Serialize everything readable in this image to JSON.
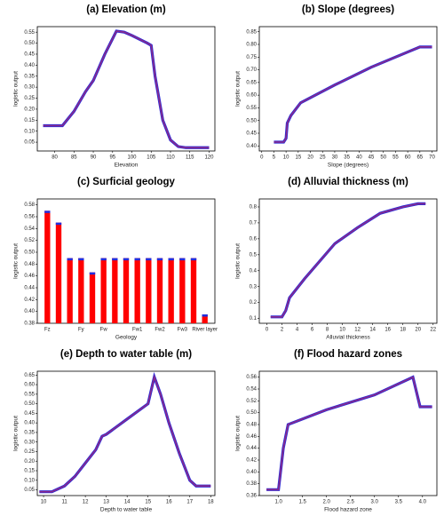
{
  "chart_data": [
    {
      "type": "line",
      "title": "(a) Elevation (m)",
      "xlabel": "Elevation",
      "ylabel": "logistic output",
      "x": [
        77,
        82,
        85,
        88,
        90,
        93,
        96,
        98,
        100,
        104,
        105,
        106,
        108,
        110,
        112,
        114,
        120
      ],
      "series": [
        {
          "color": "#8b2a8b",
          "values": [
            0.125,
            0.125,
            0.19,
            0.28,
            0.33,
            0.45,
            0.555,
            0.55,
            0.535,
            0.5,
            0.49,
            0.35,
            0.15,
            0.06,
            0.03,
            0.025,
            0.025
          ]
        }
      ],
      "xlim": [
        75.5,
        121.5
      ],
      "xticks": [
        80,
        85,
        90,
        95,
        100,
        105,
        110,
        115,
        120
      ],
      "ylim": [
        0.01,
        0.575
      ],
      "yticks": [
        0.05,
        {
          "value": 0.1,
          "label": "0.10"
        },
        0.15,
        {
          "value": 0.2,
          "label": "0.20"
        },
        0.25,
        {
          "value": 0.3,
          "label": "0.30"
        },
        0.35,
        {
          "value": 0.4,
          "label": "0.40"
        },
        0.45,
        {
          "value": 0.5,
          "label": "0.50"
        },
        0.55
      ]
    },
    {
      "type": "line",
      "title": "(b) Slope (degrees)",
      "xlabel": "Slope (degrees)",
      "ylabel": "logistic output",
      "x": [
        5,
        9,
        10,
        10.5,
        12,
        16,
        30,
        45,
        60,
        65,
        70
      ],
      "series": [
        {
          "color": "#8b2a8b",
          "values": [
            0.415,
            0.415,
            0.43,
            0.49,
            0.52,
            0.57,
            0.64,
            0.71,
            0.77,
            0.79,
            0.79
          ]
        }
      ],
      "xlim": [
        -1,
        72
      ],
      "xticks": [
        0,
        5,
        10,
        15,
        20,
        25,
        30,
        35,
        40,
        45,
        50,
        55,
        60,
        65,
        70
      ],
      "ylim": [
        0.38,
        0.87
      ],
      "yticks": [
        {
          "value": 0.4,
          "label": "0.40"
        },
        0.45,
        {
          "value": 0.5,
          "label": "0.50"
        },
        0.55,
        {
          "value": 0.6,
          "label": "0.60"
        },
        0.65,
        {
          "value": 0.7,
          "label": "0.70"
        },
        0.75,
        {
          "value": 0.8,
          "label": "0.80"
        },
        0.85
      ]
    },
    {
      "type": "bar",
      "title": "(c) Surficial geology",
      "xlabel": "Geology",
      "ylabel": "logistic output",
      "color": "#ff0000",
      "categories": [
        "Fz",
        null,
        null,
        "Fy",
        null,
        "Fw",
        null,
        null,
        "Fw1",
        null,
        "Fw2",
        null,
        "Fw3",
        null,
        "River layer"
      ],
      "values": [
        0.57,
        0.55,
        0.49,
        0.49,
        0.466,
        0.49,
        0.49,
        0.49,
        0.49,
        0.49,
        0.49,
        0.49,
        0.49,
        0.49,
        0.395
      ],
      "ylim": [
        0.38,
        0.59
      ],
      "yticks": [
        0.38,
        {
          "value": 0.4,
          "label": "0.40"
        },
        0.42,
        0.44,
        0.46,
        0.48,
        {
          "value": 0.5,
          "label": "0.50"
        },
        0.52,
        0.54,
        0.56,
        0.58
      ]
    },
    {
      "type": "line",
      "title": "(d) Alluvial thickness (m)",
      "xlabel": "Alluvial thickness",
      "ylabel": "logistic output",
      "x": [
        0.5,
        2,
        2.5,
        3,
        3.5,
        5,
        7,
        9,
        12,
        15,
        18,
        20,
        21
      ],
      "series": [
        {
          "color": "#8b2a8b",
          "values": [
            0.11,
            0.11,
            0.15,
            0.23,
            0.26,
            0.35,
            0.46,
            0.57,
            0.67,
            0.76,
            0.8,
            0.82,
            0.82
          ]
        }
      ],
      "xlim": [
        -1,
        22.5
      ],
      "xticks": [
        0,
        2,
        4,
        6,
        8,
        10,
        12,
        14,
        16,
        18,
        20,
        22
      ],
      "ylim": [
        0.07,
        0.85
      ],
      "yticks": [
        0.1,
        0.2,
        0.3,
        0.4,
        0.5,
        0.6,
        0.7,
        0.8
      ]
    },
    {
      "type": "line",
      "title": "(e) Depth to water table (m)",
      "xlabel": "Depth to water table",
      "ylabel": "logistic output",
      "x": [
        9.8,
        10.4,
        11,
        11.5,
        12,
        12.5,
        12.8,
        13,
        14,
        15,
        15.3,
        15.6,
        16,
        16.5,
        17,
        17.3,
        18
      ],
      "series": [
        {
          "color": "#8b2a8b",
          "values": [
            0.04,
            0.04,
            0.07,
            0.12,
            0.19,
            0.26,
            0.33,
            0.34,
            0.42,
            0.5,
            0.64,
            0.55,
            0.4,
            0.24,
            0.1,
            0.07,
            0.07
          ]
        }
      ],
      "xlim": [
        9.7,
        18.2
      ],
      "xticks": [
        10,
        11,
        12,
        13,
        14,
        15,
        16,
        17,
        18
      ],
      "ylim": [
        0.02,
        0.67
      ],
      "yticks": [
        0.05,
        {
          "value": 0.1,
          "label": "0.10"
        },
        0.15,
        {
          "value": 0.2,
          "label": "0.20"
        },
        0.25,
        {
          "value": 0.3,
          "label": "0.30"
        },
        0.35,
        {
          "value": 0.4,
          "label": "0.40"
        },
        0.45,
        {
          "value": 0.5,
          "label": "0.50"
        },
        0.55,
        {
          "value": 0.6,
          "label": "0.60"
        },
        0.65
      ]
    },
    {
      "type": "line",
      "title": "(f) Flood hazard zones",
      "xlabel": "Flood hazard zone",
      "ylabel": "logistic output",
      "x": [
        0.75,
        1,
        1.1,
        1.2,
        2,
        3,
        3.8,
        3.95,
        4.2
      ],
      "series": [
        {
          "color": "#8b2a8b",
          "values": [
            0.37,
            0.37,
            0.44,
            0.48,
            0.505,
            0.53,
            0.56,
            0.51,
            0.51
          ]
        }
      ],
      "xlim": [
        0.6,
        4.3
      ],
      "xticks": [
        {
          "value": 1,
          "label": "1.0"
        },
        1.5,
        {
          "value": 2,
          "label": "2.0"
        },
        2.5,
        {
          "value": 3,
          "label": "3.0"
        },
        3.5,
        {
          "value": 4,
          "label": "4.0"
        }
      ],
      "ylim": [
        0.36,
        0.57
      ],
      "yticks": [
        0.36,
        0.38,
        {
          "value": 0.4,
          "label": "0.40"
        },
        0.42,
        0.44,
        0.46,
        0.48,
        {
          "value": 0.5,
          "label": "0.50"
        },
        0.52,
        0.54,
        0.56
      ]
    }
  ]
}
